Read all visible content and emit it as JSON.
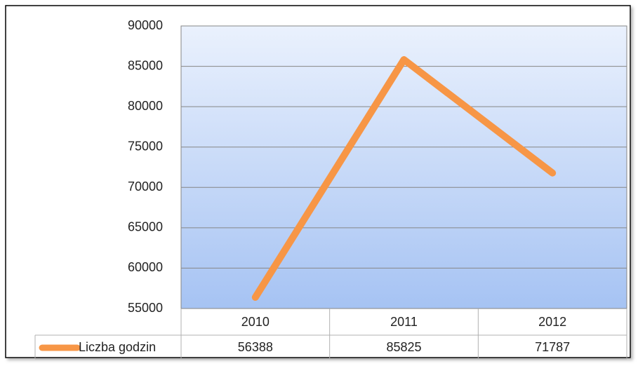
{
  "chart_data": {
    "type": "line",
    "categories": [
      "2010",
      "2011",
      "2012"
    ],
    "series": [
      {
        "name": "Liczba godzin",
        "color": "#f79646",
        "values": [
          56388,
          85825,
          71787
        ]
      }
    ],
    "ylim": [
      55000,
      90000
    ],
    "yticks": [
      55000,
      60000,
      65000,
      70000,
      75000,
      80000,
      85000,
      90000
    ],
    "grid": true
  }
}
